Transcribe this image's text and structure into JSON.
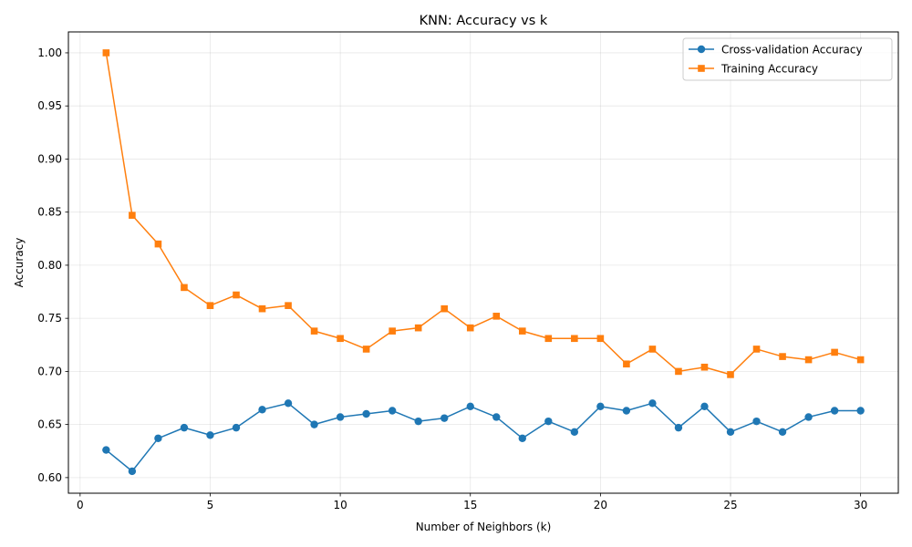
{
  "chart_data": {
    "type": "line",
    "title": "KNN: Accuracy vs k",
    "xlabel": "Number of Neighbors (k)",
    "ylabel": "Accuracy",
    "xlim": [
      -0.45,
      31.45
    ],
    "ylim": [
      0.5853,
      1.0197
    ],
    "xticks": [
      0,
      5,
      10,
      15,
      20,
      25,
      30
    ],
    "xtick_labels": [
      "0",
      "5",
      "10",
      "15",
      "20",
      "25",
      "30"
    ],
    "yticks": [
      0.6,
      0.65,
      0.7,
      0.75,
      0.8,
      0.85,
      0.9,
      0.95,
      1.0
    ],
    "ytick_labels": [
      "0.60",
      "0.65",
      "0.70",
      "0.75",
      "0.80",
      "0.85",
      "0.90",
      "0.95",
      "1.00"
    ],
    "grid": true,
    "legend_position": "top-right",
    "x": [
      1,
      2,
      3,
      4,
      5,
      6,
      7,
      8,
      9,
      10,
      11,
      12,
      13,
      14,
      15,
      16,
      17,
      18,
      19,
      20,
      21,
      22,
      23,
      24,
      25,
      26,
      27,
      28,
      29,
      30
    ],
    "series": [
      {
        "name": "Cross-validation Accuracy",
        "color": "#1f77b4",
        "marker": "circle",
        "values": [
          0.626,
          0.606,
          0.637,
          0.647,
          0.64,
          0.647,
          0.664,
          0.67,
          0.65,
          0.657,
          0.66,
          0.663,
          0.653,
          0.656,
          0.667,
          0.657,
          0.637,
          0.653,
          0.643,
          0.667,
          0.663,
          0.67,
          0.647,
          0.667,
          0.643,
          0.653,
          0.643,
          0.657,
          0.663,
          0.663
        ]
      },
      {
        "name": "Training Accuracy",
        "color": "#ff7f0e",
        "marker": "square",
        "values": [
          1.0,
          0.847,
          0.82,
          0.779,
          0.762,
          0.772,
          0.759,
          0.762,
          0.738,
          0.731,
          0.721,
          0.738,
          0.741,
          0.759,
          0.741,
          0.752,
          0.738,
          0.731,
          0.731,
          0.731,
          0.707,
          0.721,
          0.7,
          0.704,
          0.697,
          0.721,
          0.714,
          0.711,
          0.718,
          0.711
        ]
      }
    ]
  }
}
